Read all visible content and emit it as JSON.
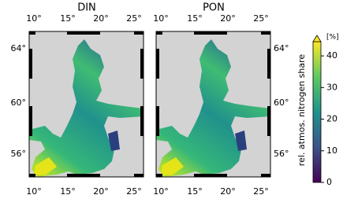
{
  "panels": [
    {
      "title": "DIN",
      "lon_labels": [
        "10°",
        "15°",
        "20°",
        "25°"
      ],
      "lat_labels": [
        "64°",
        "60°",
        "56°"
      ]
    },
    {
      "title": "PON",
      "lon_labels": [
        "10°",
        "15°",
        "20°",
        "25°"
      ],
      "lat_labels": [
        "64°",
        "60°",
        "56°"
      ]
    }
  ],
  "colorbar": {
    "label": "rel. atmos. nitrogen share",
    "unit": "[%]",
    "lim": [
      0,
      44.5
    ],
    "ticks": [
      0,
      10,
      20,
      30,
      40
    ]
  }
}
